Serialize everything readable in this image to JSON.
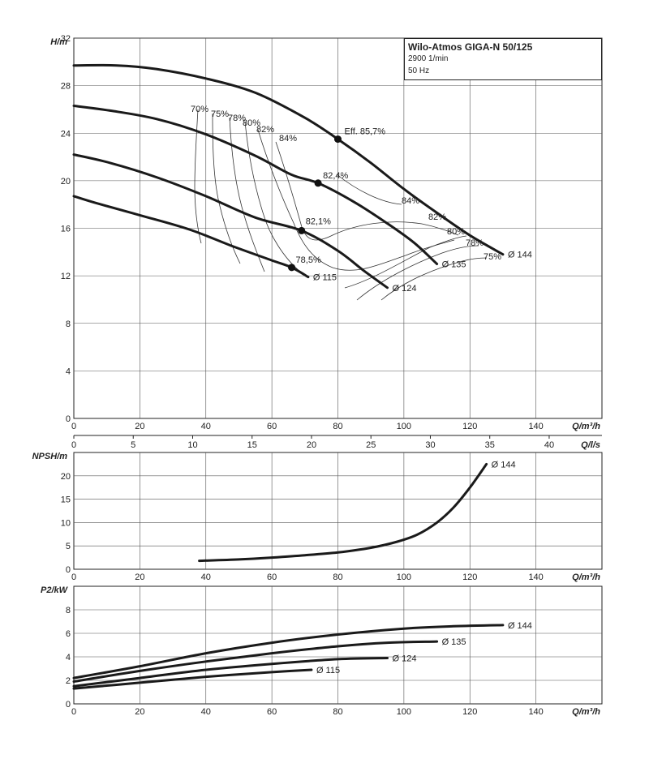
{
  "chart_data": [
    {
      "type": "line",
      "title": "Wilo-Atmos GIGA-N 50/125",
      "subtitle_lines": [
        "2900 1/min",
        "50 Hz"
      ],
      "ylabel": "H/m",
      "xlabel": "Q/m³/h",
      "xlim": [
        0,
        160
      ],
      "ylim": [
        0,
        32
      ],
      "x_ticks": [
        0,
        20,
        40,
        60,
        80,
        100,
        120,
        140
      ],
      "y_ticks": [
        0,
        4,
        8,
        12,
        16,
        20,
        24,
        28,
        32
      ],
      "grid": true,
      "series": [
        {
          "name": "Ø 144",
          "points": [
            [
              0,
              29.7
            ],
            [
              13,
              29.7
            ],
            [
              25,
              29.4
            ],
            [
              40,
              28.6
            ],
            [
              55,
              27.4
            ],
            [
              70,
              25.3
            ],
            [
              80,
              23.5
            ],
            [
              90,
              21.5
            ],
            [
              100,
              19.3
            ],
            [
              110,
              17.3
            ],
            [
              120,
              15.4
            ],
            [
              130,
              13.8
            ]
          ]
        },
        {
          "name": "Ø 135",
          "points": [
            [
              0,
              26.3
            ],
            [
              11,
              25.9
            ],
            [
              25,
              25.2
            ],
            [
              40,
              23.9
            ],
            [
              55,
              22.1
            ],
            [
              66,
              20.5
            ],
            [
              74,
              19.8
            ],
            [
              85,
              18.2
            ],
            [
              95,
              16.4
            ],
            [
              103,
              14.8
            ],
            [
              110,
              13.0
            ]
          ]
        },
        {
          "name": "Ø 124",
          "points": [
            [
              0,
              22.2
            ],
            [
              11,
              21.5
            ],
            [
              25,
              20.3
            ],
            [
              40,
              18.7
            ],
            [
              55,
              16.9
            ],
            [
              69,
              15.8
            ],
            [
              80,
              14.1
            ],
            [
              88,
              12.4
            ],
            [
              95,
              11.0
            ]
          ]
        },
        {
          "name": "Ø 115",
          "points": [
            [
              0,
              18.7
            ],
            [
              7,
              18.1
            ],
            [
              20,
              17.1
            ],
            [
              35,
              15.9
            ],
            [
              48,
              14.5
            ],
            [
              60,
              13.3
            ],
            [
              66,
              12.7
            ],
            [
              71,
              11.9
            ]
          ]
        }
      ],
      "bep_points": [
        {
          "label": "Eff. 85,7%",
          "x": 80,
          "y": 23.5
        },
        {
          "label": "82,4%",
          "x": 74,
          "y": 19.8
        },
        {
          "label": "82,1%",
          "x": 69,
          "y": 15.8
        },
        {
          "label": "78,5%",
          "x": 66,
          "y": 12.7
        }
      ],
      "efficiency_labels": [
        "70%",
        "75%",
        "78%",
        "80%",
        "82%",
        "84%",
        "84%",
        "82%",
        "80%",
        "78%",
        "75%"
      ],
      "series_labels": [
        "Ø 144",
        "Ø 135",
        "Ø 124",
        "Ø 115"
      ]
    },
    {
      "type": "axis",
      "xlabel": "Q/l/s",
      "xlim": [
        0,
        44.44
      ],
      "x_ticks": [
        0,
        5,
        10,
        15,
        20,
        25,
        30,
        35,
        40
      ]
    },
    {
      "type": "line",
      "ylabel": "NPSH/m",
      "xlabel": "Q/m³/h",
      "xlim": [
        0,
        160
      ],
      "ylim": [
        0,
        25
      ],
      "x_ticks": [
        0,
        20,
        40,
        60,
        80,
        100,
        120,
        140
      ],
      "y_ticks": [
        0,
        5,
        10,
        15,
        20
      ],
      "grid": true,
      "series": [
        {
          "name": "Ø 144",
          "points": [
            [
              38,
              1.8
            ],
            [
              50,
              2.1
            ],
            [
              60,
              2.5
            ],
            [
              70,
              3.0
            ],
            [
              80,
              3.6
            ],
            [
              90,
              4.6
            ],
            [
              98,
              5.9
            ],
            [
              104,
              7.4
            ],
            [
              110,
              10.0
            ],
            [
              115,
              13.2
            ],
            [
              120,
              17.5
            ],
            [
              125,
              22.5
            ]
          ]
        }
      ]
    },
    {
      "type": "line",
      "ylabel": "P2/kW",
      "xlabel": "Q/m³/h",
      "xlim": [
        0,
        160
      ],
      "ylim": [
        0,
        10
      ],
      "x_ticks": [
        0,
        20,
        40,
        60,
        80,
        100,
        120,
        140
      ],
      "y_ticks": [
        0,
        2,
        4,
        6,
        8
      ],
      "grid": true,
      "series": [
        {
          "name": "Ø 144",
          "points": [
            [
              0,
              2.2
            ],
            [
              20,
              3.2
            ],
            [
              40,
              4.3
            ],
            [
              60,
              5.2
            ],
            [
              80,
              5.9
            ],
            [
              100,
              6.4
            ],
            [
              115,
              6.6
            ],
            [
              130,
              6.7
            ]
          ]
        },
        {
          "name": "Ø 135",
          "points": [
            [
              0,
              1.9
            ],
            [
              20,
              2.8
            ],
            [
              40,
              3.6
            ],
            [
              60,
              4.3
            ],
            [
              80,
              4.9
            ],
            [
              95,
              5.2
            ],
            [
              110,
              5.3
            ]
          ]
        },
        {
          "name": "Ø 124",
          "points": [
            [
              0,
              1.5
            ],
            [
              20,
              2.2
            ],
            [
              40,
              2.9
            ],
            [
              60,
              3.4
            ],
            [
              80,
              3.8
            ],
            [
              95,
              3.9
            ]
          ]
        },
        {
          "name": "Ø 115",
          "points": [
            [
              0,
              1.3
            ],
            [
              20,
              1.8
            ],
            [
              40,
              2.3
            ],
            [
              60,
              2.7
            ],
            [
              72,
              2.9
            ]
          ]
        }
      ]
    }
  ]
}
